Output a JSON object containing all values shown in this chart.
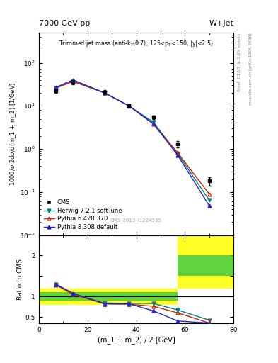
{
  "title_top": "7000 GeV pp",
  "title_right": "W+Jet",
  "panel_title": "Trimmed jet mass (anti-k_{T}(0.7), 125<p_{T}<150, |y|<2.5)",
  "ylabel_main": "1000/σ 2dσ/d(m_1 + m_2) [1/GeV]",
  "ylabel_ratio": "Ratio to CMS",
  "xlabel": "(m_1 + m_2) / 2 [GeV]",
  "watermark": "CMS_2013_I1224539",
  "rivet_label": "Rivet 3.1.10, ≥ 3.3M events",
  "mcplots_label": "mcplots.cern.ch [arXiv:1306.3436]",
  "x_cms": [
    7,
    14,
    27,
    37,
    47,
    57,
    70
  ],
  "y_cms": [
    22,
    35,
    21,
    10,
    5.5,
    1.3,
    0.18
  ],
  "y_cms_err": [
    2,
    3,
    2,
    1,
    0.5,
    0.2,
    0.04
  ],
  "x_herwig": [
    7,
    14,
    27,
    37,
    47,
    57,
    70
  ],
  "y_herwig": [
    26,
    37,
    20,
    10,
    4.2,
    0.78,
    0.065
  ],
  "x_pythia6": [
    7,
    14,
    27,
    37,
    47,
    57,
    70
  ],
  "y_pythia6": [
    26,
    37,
    20,
    10,
    3.8,
    0.82,
    0.09
  ],
  "x_pythia8": [
    7,
    14,
    27,
    37,
    47,
    57,
    70
  ],
  "y_pythia8": [
    27,
    40,
    20,
    10,
    3.9,
    0.72,
    0.048
  ],
  "x_ratio": [
    7,
    14,
    27,
    37,
    47,
    57,
    70
  ],
  "ratio_herwig": [
    1.3,
    1.05,
    0.84,
    0.83,
    0.83,
    0.67,
    0.42
  ],
  "ratio_pythia6": [
    1.28,
    1.05,
    0.82,
    0.81,
    0.76,
    0.6,
    0.35
  ],
  "ratio_pythia8": [
    1.3,
    1.08,
    0.82,
    0.82,
    0.65,
    0.4,
    0.35
  ],
  "ratio_herwig_err": [
    [
      0.0,
      0.0,
      0.0,
      0.0,
      0.0,
      0.05,
      0.0
    ],
    [
      0.0,
      0.0,
      0.0,
      0.0,
      0.0,
      0.05,
      0.0
    ]
  ],
  "ratio_pythia6_err": [
    [
      0.0,
      0.0,
      0.0,
      0.0,
      0.0,
      0.0,
      0.1
    ],
    [
      0.0,
      0.0,
      0.0,
      0.0,
      0.0,
      0.0,
      0.1
    ]
  ],
  "band_edges": [
    0,
    47,
    57,
    70,
    80
  ],
  "band_yellow_lo": [
    0.8,
    0.8,
    1.2,
    1.2
  ],
  "band_yellow_hi": [
    1.2,
    1.2,
    2.5,
    2.5
  ],
  "band_green_lo": [
    0.9,
    0.9,
    1.5,
    1.5
  ],
  "band_green_hi": [
    1.1,
    1.1,
    2.0,
    2.0
  ],
  "color_cms": "#000000",
  "color_herwig": "#008080",
  "color_pythia6": "#cc2200",
  "color_pythia8": "#2222cc",
  "ylim_main": [
    0.01,
    500
  ],
  "ylim_ratio": [
    0.35,
    2.5
  ],
  "xlim": [
    0,
    80
  ]
}
